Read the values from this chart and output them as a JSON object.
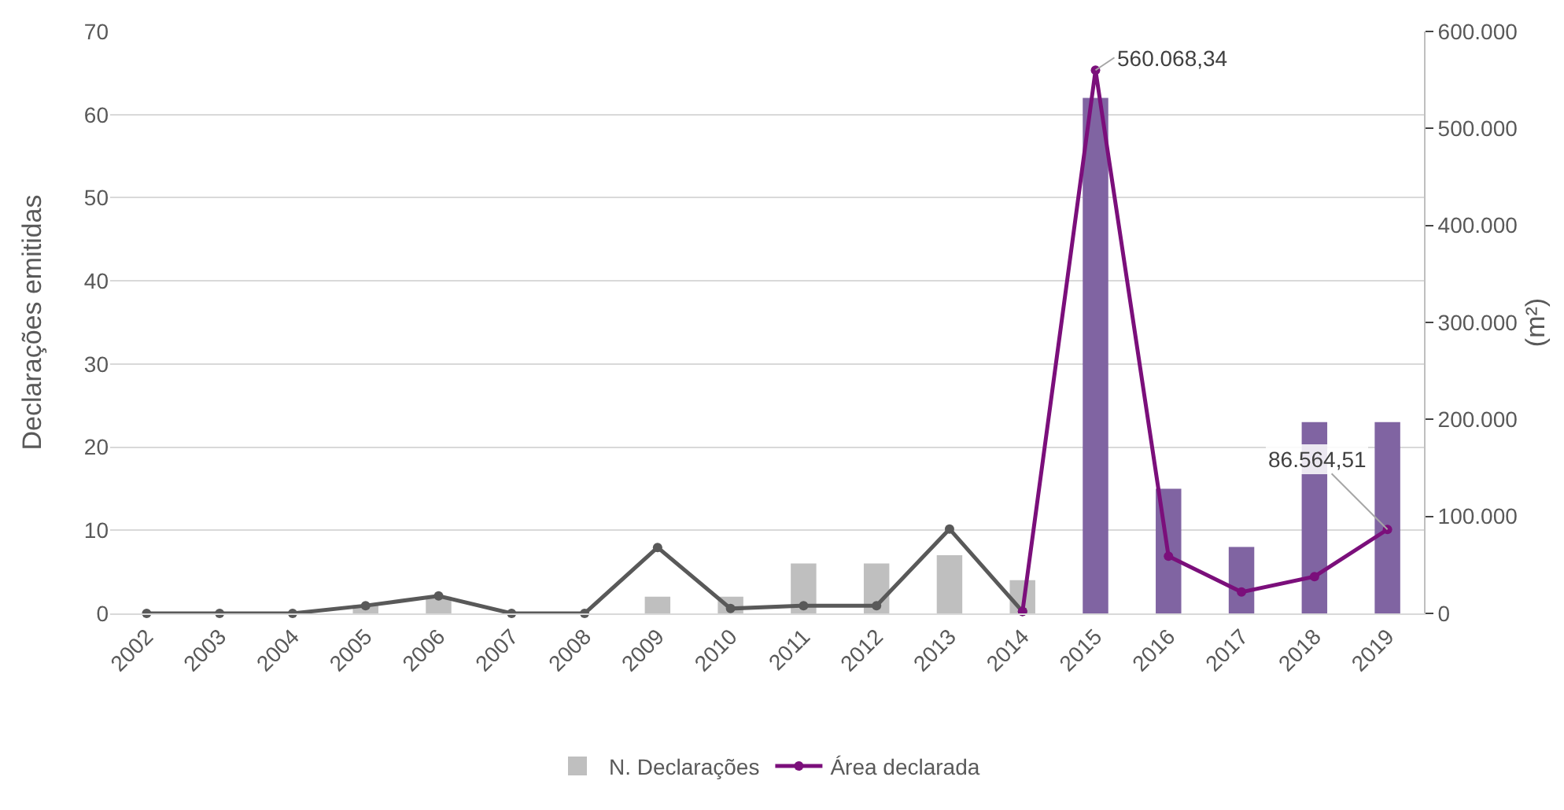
{
  "chart_data": {
    "type": "bar",
    "ylabel": "Declarações emitidas",
    "y2label": "(m²)",
    "categories": [
      "2002",
      "2003",
      "2004",
      "2005",
      "2006",
      "2007",
      "2008",
      "2009",
      "2010",
      "2011",
      "2012",
      "2013",
      "2014",
      "2015",
      "2016",
      "2017",
      "2018",
      "2019"
    ],
    "series": [
      {
        "name": "N. Declarações",
        "color": "#8064a2",
        "colors": [
          "#bfbfbf",
          "#bfbfbf",
          "#bfbfbf",
          "#bfbfbf",
          "#bfbfbf",
          "#bfbfbf",
          "#bfbfbf",
          "#bfbfbf",
          "#bfbfbf",
          "#bfbfbf",
          "#bfbfbf",
          "#bfbfbf",
          "#bfbfbf",
          "#8064a2",
          "#8064a2",
          "#8064a2",
          "#8064a2",
          "#8064a2"
        ],
        "values": [
          0,
          0,
          0,
          1,
          2,
          0,
          0,
          2,
          2,
          6,
          6,
          7,
          4,
          62,
          15,
          8,
          23,
          23
        ]
      },
      {
        "type": "line",
        "axis": "y2",
        "color": "#595959",
        "marker": "circle",
        "values": [
          0,
          0,
          0,
          8000,
          18000,
          0,
          0,
          68000,
          5000,
          8000,
          8000,
          87000,
          2000,
          null,
          null,
          null,
          null,
          null
        ]
      },
      {
        "name": "Área declarada",
        "type": "line",
        "axis": "y2",
        "color": "#7b0f7b",
        "marker": "circle",
        "values": [
          null,
          null,
          null,
          null,
          null,
          null,
          null,
          null,
          null,
          null,
          null,
          null,
          2000,
          560068.34,
          59000,
          22000,
          38000,
          86564.51
        ],
        "value_labels": [
          null,
          null,
          null,
          null,
          null,
          null,
          null,
          null,
          null,
          null,
          null,
          null,
          null,
          "560.068,34",
          null,
          null,
          null,
          "86.564,51"
        ]
      }
    ],
    "ylim": [
      0,
      70
    ],
    "yticks": [
      0,
      10,
      20,
      30,
      40,
      50,
      60,
      70
    ],
    "y2lim": [
      0,
      600000
    ],
    "y2ticks": [
      0,
      {
        "value": 100000,
        "label": "100.000"
      },
      {
        "value": 200000,
        "label": "200.000"
      },
      {
        "value": 300000,
        "label": "300.000"
      },
      {
        "value": 400000,
        "label": "400.000"
      },
      {
        "value": 500000,
        "label": "500.000"
      },
      {
        "value": 600000,
        "label": "600.000"
      }
    ],
    "grid": "y",
    "legend": "bottom"
  }
}
